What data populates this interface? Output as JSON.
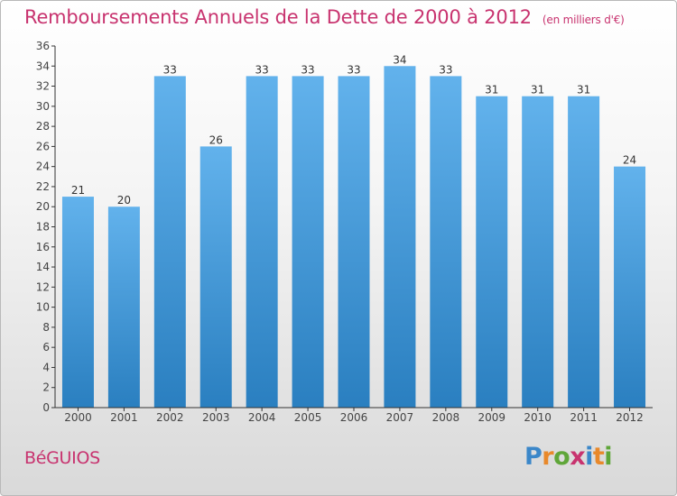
{
  "header": {
    "title": "Remboursements Annuels de la Dette de 2000 à 2012",
    "unit": "(en milliers d'€)"
  },
  "footer": {
    "city": "BéGUIOS",
    "logo_text": "Proxiti",
    "logo_colors": [
      "#3b87c9",
      "#e8892b",
      "#5fa639",
      "#c8336f",
      "#3b87c9",
      "#e8892b",
      "#5fa639"
    ]
  },
  "colors": {
    "bar_top": "#62b2ec",
    "bar_bottom": "#2a7fc0",
    "axis": "#333333",
    "title": "#c8336f"
  },
  "chart_data": {
    "type": "bar",
    "title": "Remboursements Annuels de la Dette de 2000 à 2012",
    "ylabel": "",
    "xlabel": "",
    "categories": [
      "2000",
      "2001",
      "2002",
      "2003",
      "2004",
      "2005",
      "2006",
      "2007",
      "2008",
      "2009",
      "2010",
      "2011",
      "2012"
    ],
    "values": [
      21,
      20,
      33,
      26,
      33,
      33,
      33,
      34,
      33,
      31,
      31,
      31,
      24
    ],
    "ylim": [
      0,
      36
    ],
    "ytick_step": 2,
    "grid": false,
    "legend": "none"
  }
}
